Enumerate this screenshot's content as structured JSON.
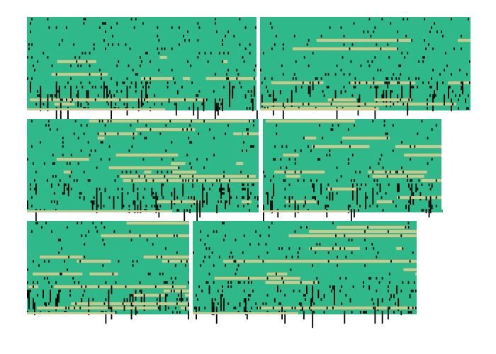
{
  "colors": {
    "background": "#ffffff",
    "cell_base": "#2fb889",
    "cell_mutation": "#000000",
    "cell_gap": "#c8c98e",
    "divider": "#ffffff"
  },
  "panels": [
    {
      "id": "block-1",
      "row": 1,
      "order": 1,
      "rows": 22,
      "cols": 160,
      "divider_fraction": 1.0
    },
    {
      "id": "block-2",
      "row": 1,
      "order": 2,
      "rows": 22,
      "cols": 150,
      "divider_fraction": 1.0
    },
    {
      "id": "block-3",
      "row": 2,
      "order": 1,
      "rows": 22,
      "cols": 165,
      "divider_fraction": 1.0
    },
    {
      "id": "block-4",
      "row": 2,
      "order": 2,
      "rows": 22,
      "cols": 125,
      "divider_fraction": 0.97
    },
    {
      "id": "block-5",
      "row": 3,
      "order": 1,
      "rows": 22,
      "cols": 115,
      "divider_fraction": 1.0
    },
    {
      "id": "block-6",
      "row": 3,
      "order": 2,
      "rows": 22,
      "cols": 155,
      "divider_fraction": 1.0
    }
  ]
}
